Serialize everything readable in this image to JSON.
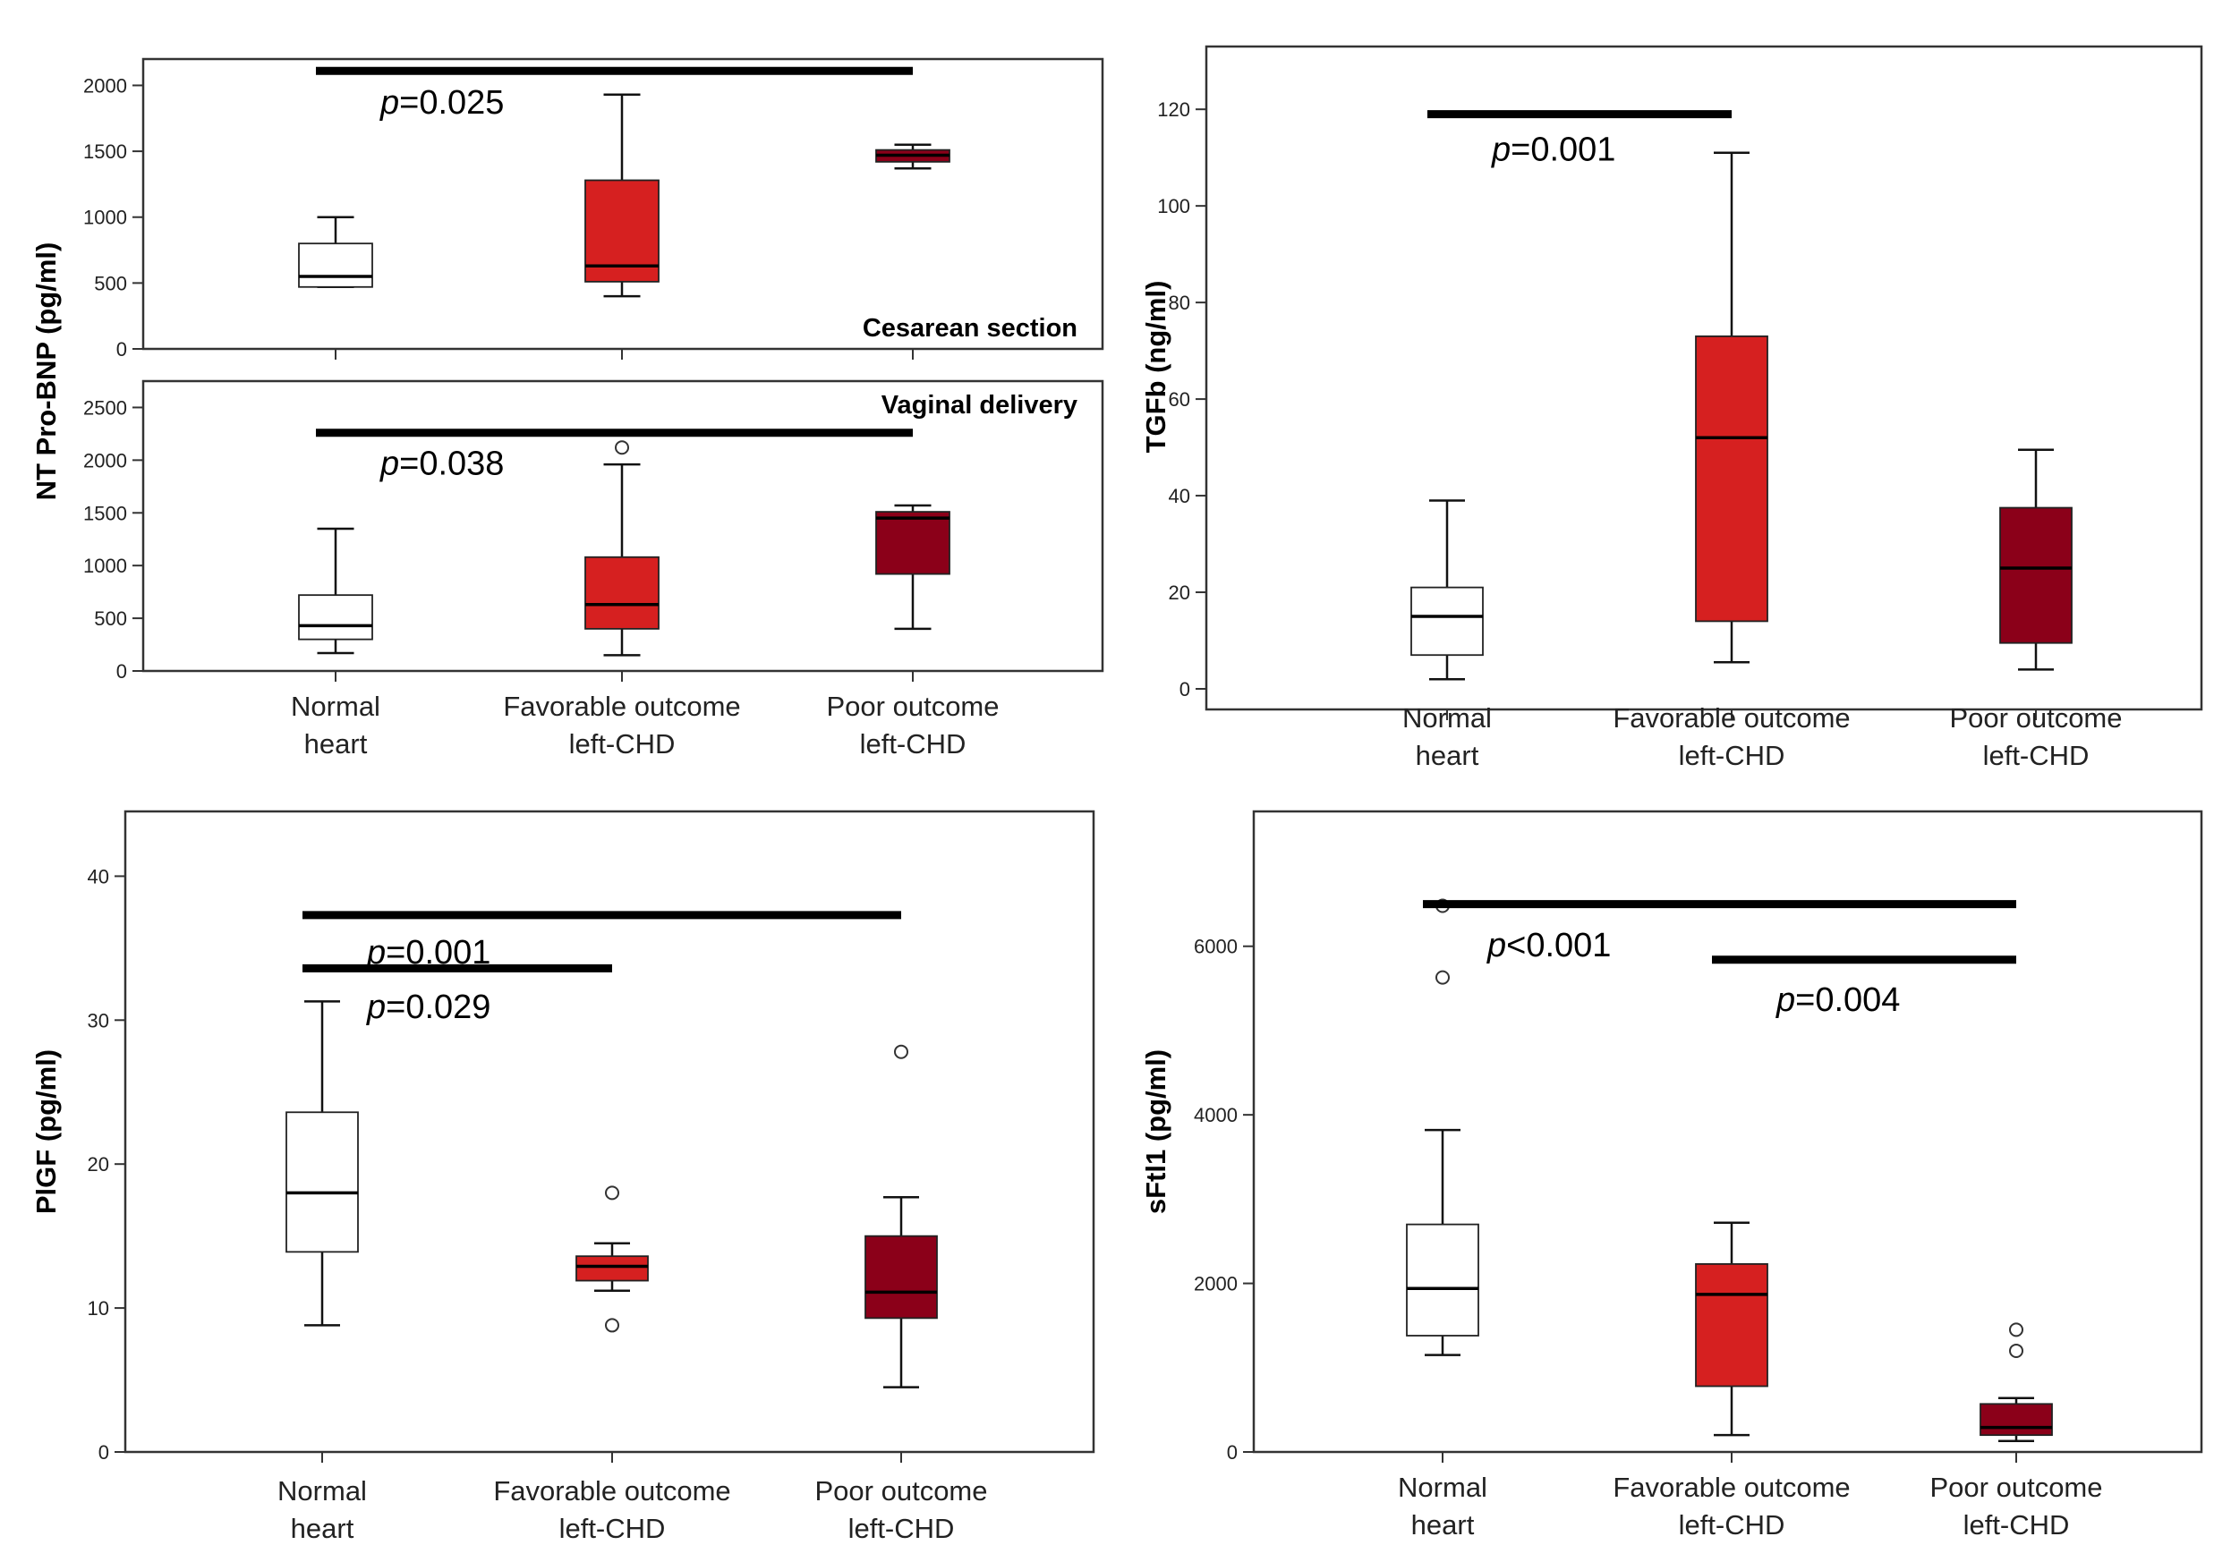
{
  "colors": {
    "normal": "#ffffff",
    "favorable": "#d62020",
    "poor": "#8b0019",
    "frame": "#333333"
  },
  "chart_data": [
    {
      "id": "ntprobnp-cs",
      "type": "box",
      "ylabel": "NT Pro-BNP (pg/ml)",
      "annotation": "Cesarean section",
      "ylim": [
        0,
        2200
      ],
      "yticks": [
        0,
        500,
        1000,
        1500,
        2000
      ],
      "categories": [
        "Normal heart",
        "Favorable outcome left-CHD",
        "Poor outcome left-CHD"
      ],
      "boxes": [
        {
          "min": 470,
          "q1": 470,
          "median": 550,
          "q3": 800,
          "max": 1000,
          "outliers": []
        },
        {
          "min": 400,
          "q1": 510,
          "median": 630,
          "q3": 1280,
          "max": 1930,
          "outliers": []
        },
        {
          "min": 1370,
          "q1": 1420,
          "median": 1470,
          "q3": 1510,
          "max": 1550,
          "outliers": []
        }
      ],
      "pvalues": [
        {
          "p": "p",
          "text": "=0.025",
          "from": 0,
          "to": 2,
          "y": 2110,
          "label_y": 1880
        }
      ]
    },
    {
      "id": "ntprobnp-vd",
      "type": "box",
      "ylabel": "",
      "annotation": "Vaginal delivery",
      "ylim": [
        0,
        2750
      ],
      "yticks": [
        0,
        500,
        1000,
        1500,
        2000,
        2500
      ],
      "categories": [
        "Normal heart",
        "Favorable outcome left-CHD",
        "Poor outcome left-CHD"
      ],
      "boxes": [
        {
          "min": 170,
          "q1": 300,
          "median": 430,
          "q3": 720,
          "max": 1350,
          "outliers": []
        },
        {
          "min": 150,
          "q1": 400,
          "median": 630,
          "q3": 1080,
          "max": 1960,
          "outliers": [
            2120
          ]
        },
        {
          "min": 400,
          "q1": 920,
          "median": 1450,
          "q3": 1510,
          "max": 1570,
          "outliers": []
        }
      ],
      "pvalues": [
        {
          "p": "p",
          "text": "=0.038",
          "from": 0,
          "to": 2,
          "y": 2260,
          "label_y": 1980
        }
      ]
    },
    {
      "id": "tgfb",
      "type": "box",
      "ylabel": "TGFb (ng/ml)",
      "annotation": "",
      "ylim": [
        0,
        133
      ],
      "yticks": [
        0,
        20,
        40,
        60,
        80,
        100,
        120
      ],
      "categories": [
        "Normal heart",
        "Favorable outcome left-CHD",
        "Poor outcome left-CHD"
      ],
      "boxes": [
        {
          "min": 2,
          "q1": 7,
          "median": 15,
          "q3": 21,
          "max": 39,
          "outliers": []
        },
        {
          "min": 5.5,
          "q1": 14,
          "median": 52,
          "q3": 73,
          "max": 111,
          "outliers": []
        },
        {
          "min": 4,
          "q1": 9.5,
          "median": 25,
          "q3": 37.5,
          "max": 49.5,
          "outliers": []
        }
      ],
      "pvalues": [
        {
          "p": "p",
          "text": "=0.001",
          "from": 0,
          "to": 1,
          "y": 119,
          "label_y": 112
        }
      ]
    },
    {
      "id": "plgf",
      "type": "box",
      "ylabel": "PlGF (pg/ml)",
      "annotation": "",
      "ylim": [
        0,
        44.5
      ],
      "yticks": [
        0,
        10,
        20,
        30,
        40
      ],
      "categories": [
        "Normal heart",
        "Favorable outcome left-CHD",
        "Poor outcome left-CHD"
      ],
      "boxes": [
        {
          "min": 8.8,
          "q1": 13.9,
          "median": 18,
          "q3": 23.6,
          "max": 31.3,
          "outliers": []
        },
        {
          "min": 11.2,
          "q1": 11.9,
          "median": 12.9,
          "q3": 13.6,
          "max": 14.5,
          "outliers": [
            18,
            8.8
          ]
        },
        {
          "min": 4.5,
          "q1": 9.3,
          "median": 11.1,
          "q3": 15,
          "max": 17.7,
          "outliers": [
            27.8
          ]
        }
      ],
      "pvalues": [
        {
          "p": "p",
          "text": "=0.001",
          "from": 0,
          "to": 2,
          "y": 37.3,
          "label_y": 34.8
        },
        {
          "p": "p",
          "text": "=0.029",
          "from": 0,
          "to": 1,
          "y": 33.6,
          "label_y": 31.0
        }
      ]
    },
    {
      "id": "sflt1",
      "type": "box",
      "ylabel": "sFtl1 (pg/ml)",
      "annotation": "",
      "ylim": [
        0,
        7600
      ],
      "yticks": [
        0,
        2000,
        4000,
        6000
      ],
      "categories": [
        "Normal heart",
        "Favorable outcome left-CHD",
        "Poor outcome left-CHD"
      ],
      "boxes": [
        {
          "min": 1150,
          "q1": 1380,
          "median": 1940,
          "q3": 2700,
          "max": 3820,
          "outliers": [
            5630,
            6480
          ]
        },
        {
          "min": 200,
          "q1": 780,
          "median": 1870,
          "q3": 2230,
          "max": 2720,
          "outliers": []
        },
        {
          "min": 130,
          "q1": 200,
          "median": 290,
          "q3": 570,
          "max": 640,
          "outliers": [
            1450,
            1200
          ]
        }
      ],
      "pvalues": [
        {
          "p": "p",
          "text": "<0.001",
          "from": 0,
          "to": 2,
          "y": 6500,
          "label_y": 6030
        },
        {
          "p": "p",
          "text": "=0.004",
          "from": 1,
          "to": 2,
          "y": 5840,
          "label_y": 5380
        }
      ]
    }
  ]
}
